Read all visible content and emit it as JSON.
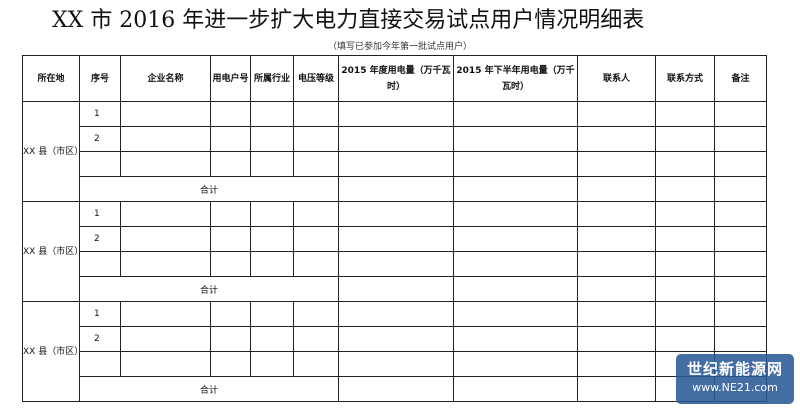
{
  "title": "XX 市 2016 年进一步扩大电力直接交易试点用户情况明细表",
  "subtitle": "（填写已参加今年第一批试点用户）",
  "headers": [
    "所在地",
    "序号",
    "企业名称",
    "用电户号",
    "所属行业",
    "电压等级",
    "2015 年度用电量（万千瓦时）",
    "2015 年下半年用电量（万千瓦时）",
    "联系人",
    "联系方式",
    "备注"
  ],
  "groups": [
    {
      "location": "XX 县（市区）",
      "rows": [
        "1",
        "2",
        ""
      ],
      "total_label": "合计"
    },
    {
      "location": "XX 县（市区）",
      "rows": [
        "1",
        "2",
        ""
      ],
      "total_label": "合计"
    },
    {
      "location": "XX 县（市区）",
      "rows": [
        "1",
        "2",
        ""
      ],
      "total_label": "合计"
    }
  ],
  "watermark": {
    "name": "世纪新能源网",
    "url": "www.NE21.com",
    "color": "#285a96"
  }
}
